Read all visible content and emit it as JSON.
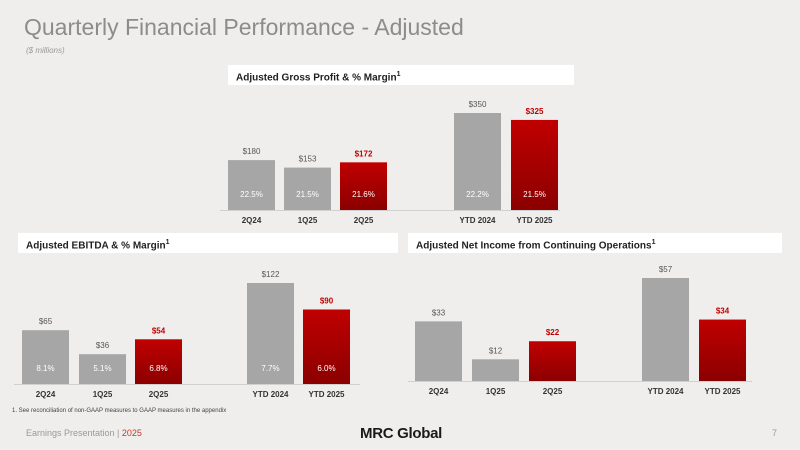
{
  "title": "Quarterly Financial Performance - Adjusted",
  "subtitle": "($ millions)",
  "footnote": "1.   See reconciliation of non-GAAP measures to GAAP measures in the appendix",
  "footer": {
    "label": "Earnings Presentation | ",
    "year": "2025",
    "page": "7"
  },
  "logo": {
    "text": "MRC Global"
  },
  "colors": {
    "gray": "#a6a6a6",
    "red": "#c00000",
    "red_dark": "#8b0000"
  },
  "chart_data": [
    {
      "type": "bar",
      "title": "Adjusted Gross Profit & % Margin",
      "footnote_mark": "1",
      "categories": [
        "2Q24",
        "1Q25",
        "2Q25",
        "YTD 2024",
        "YTD 2025"
      ],
      "values": [
        180,
        153,
        172,
        350,
        325
      ],
      "value_labels": [
        "$180",
        "$153",
        "$172",
        "$350",
        "$325"
      ],
      "margins": [
        "22.5%",
        "21.5%",
        "21.6%",
        "22.2%",
        "21.5%"
      ],
      "highlight": [
        false,
        false,
        true,
        false,
        true
      ],
      "ylim": [
        0,
        350
      ]
    },
    {
      "type": "bar",
      "title": "Adjusted EBITDA & % Margin",
      "footnote_mark": "1",
      "categories": [
        "2Q24",
        "1Q25",
        "2Q25",
        "YTD 2024",
        "YTD 2025"
      ],
      "values": [
        65,
        36,
        54,
        122,
        90
      ],
      "value_labels": [
        "$65",
        "$36",
        "$54",
        "$122",
        "$90"
      ],
      "margins": [
        "8.1%",
        "5.1%",
        "6.8%",
        "7.7%",
        "6.0%"
      ],
      "highlight": [
        false,
        false,
        true,
        false,
        true
      ],
      "ylim": [
        0,
        122
      ]
    },
    {
      "type": "bar",
      "title": "Adjusted Net Income from Continuing Operations",
      "footnote_mark": "1",
      "categories": [
        "2Q24",
        "1Q25",
        "2Q25",
        "YTD 2024",
        "YTD 2025"
      ],
      "values": [
        33,
        12,
        22,
        57,
        34
      ],
      "value_labels": [
        "$33",
        "$12",
        "$22",
        "$57",
        "$34"
      ],
      "margins": [],
      "highlight": [
        false,
        false,
        true,
        false,
        true
      ],
      "ylim": [
        0,
        57
      ]
    }
  ]
}
